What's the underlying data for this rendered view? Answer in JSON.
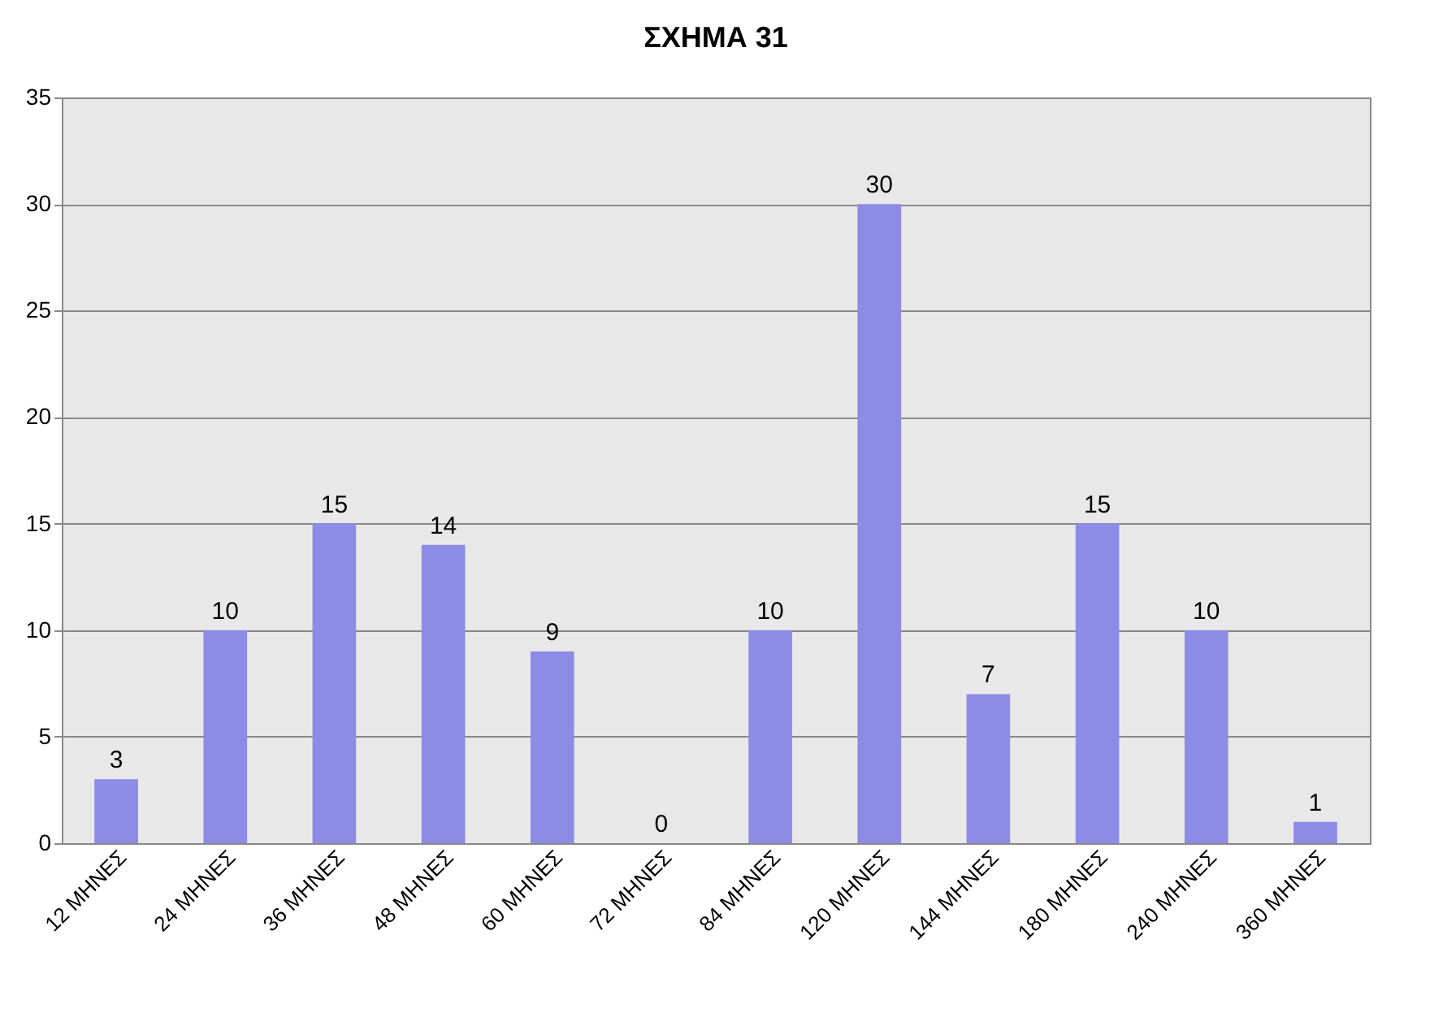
{
  "chart_data": {
    "type": "bar",
    "title": "ΣΧΗΜΑ 31",
    "categories": [
      "12 ΜΗΝΕΣ",
      "24 ΜΗΝΕΣ",
      "36 ΜΗΝΕΣ",
      "48 ΜΗΝΕΣ",
      "60 ΜΗΝΕΣ",
      "72 ΜΗΝΕΣ",
      "84 ΜΗΝΕΣ",
      "120 ΜΗΝΕΣ",
      "144 ΜΗΝΕΣ",
      "180 ΜΗΝΕΣ",
      "240 ΜΗΝΕΣ",
      "360 ΜΗΝΕΣ"
    ],
    "values": [
      3,
      10,
      15,
      14,
      9,
      0,
      10,
      30,
      7,
      15,
      10,
      1
    ],
    "color": "#8c8ce6",
    "ylim": [
      0,
      35
    ],
    "yticks": [
      0,
      5,
      10,
      15,
      20,
      25,
      30,
      35
    ],
    "grid": "y",
    "data_labels": true
  }
}
